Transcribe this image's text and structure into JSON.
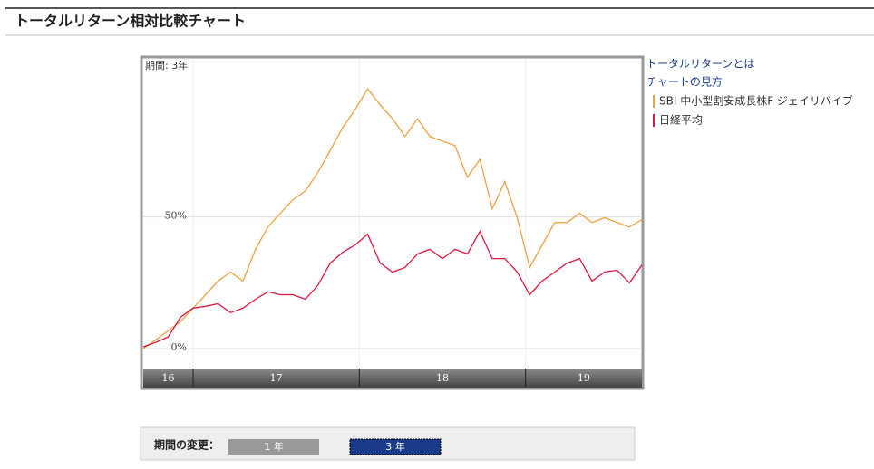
{
  "header": {
    "title": "トータルリターン相対比較チャート"
  },
  "links": [
    "トータルリターンとは",
    "チャートの見方"
  ],
  "chart_data": {
    "type": "line",
    "annotation": "期間: 3年",
    "x": [
      16.7,
      16.775,
      16.85,
      16.925,
      17.0,
      17.075,
      17.15,
      17.225,
      17.3,
      17.375,
      17.45,
      17.525,
      17.6,
      17.675,
      17.75,
      17.825,
      17.9,
      17.975,
      18.05,
      18.125,
      18.2,
      18.275,
      18.35,
      18.425,
      18.5,
      18.575,
      18.65,
      18.725,
      18.8,
      18.875,
      18.95,
      19.025,
      19.1,
      19.175,
      19.25,
      19.325,
      19.4,
      19.475,
      19.55,
      19.625,
      19.7
    ],
    "series": [
      {
        "name": "SBI 中小型割安成長株F ジェイリバイブ",
        "color": "#f0a040",
        "values": [
          0,
          3.4,
          6.8,
          10.3,
          15.4,
          20.5,
          25.7,
          29.1,
          25.7,
          37.7,
          46.2,
          51.4,
          56.5,
          59.9,
          66.8,
          75.3,
          83.9,
          90.8,
          98.6,
          92.5,
          87.3,
          80.5,
          87.3,
          80.5,
          78.8,
          77.1,
          65.1,
          71.9,
          53.1,
          63.4,
          49.7,
          30.8,
          39.4,
          47.9,
          47.9,
          51.4,
          47.9,
          49.7,
          47.9,
          46.2,
          49.0
        ]
      },
      {
        "name": "日経平均",
        "color": "#e0143c",
        "values": [
          0.7,
          2.4,
          4.5,
          12.0,
          15.4,
          16.1,
          17.1,
          13.7,
          15.4,
          18.8,
          21.6,
          20.5,
          20.5,
          18.8,
          24.0,
          32.5,
          36.6,
          39.4,
          43.5,
          32.5,
          29.1,
          30.8,
          36.0,
          37.7,
          34.2,
          37.7,
          36.0,
          44.5,
          34.2,
          34.2,
          29.1,
          20.5,
          25.7,
          29.1,
          32.5,
          34.2,
          25.7,
          29.1,
          29.8,
          25.0,
          31.8
        ]
      }
    ],
    "xlim": [
      16.7,
      19.7
    ],
    "xticks": [
      16,
      17,
      18,
      19
    ],
    "ylim": [
      -7.5,
      110
    ],
    "yticks": [
      {
        "value": 0,
        "label": "0%"
      },
      {
        "value": 50,
        "label": "50%"
      }
    ],
    "grid": true
  },
  "period_control": {
    "label": "期間の変更：",
    "buttons": [
      "1 年",
      "3 年"
    ],
    "active": 1
  }
}
